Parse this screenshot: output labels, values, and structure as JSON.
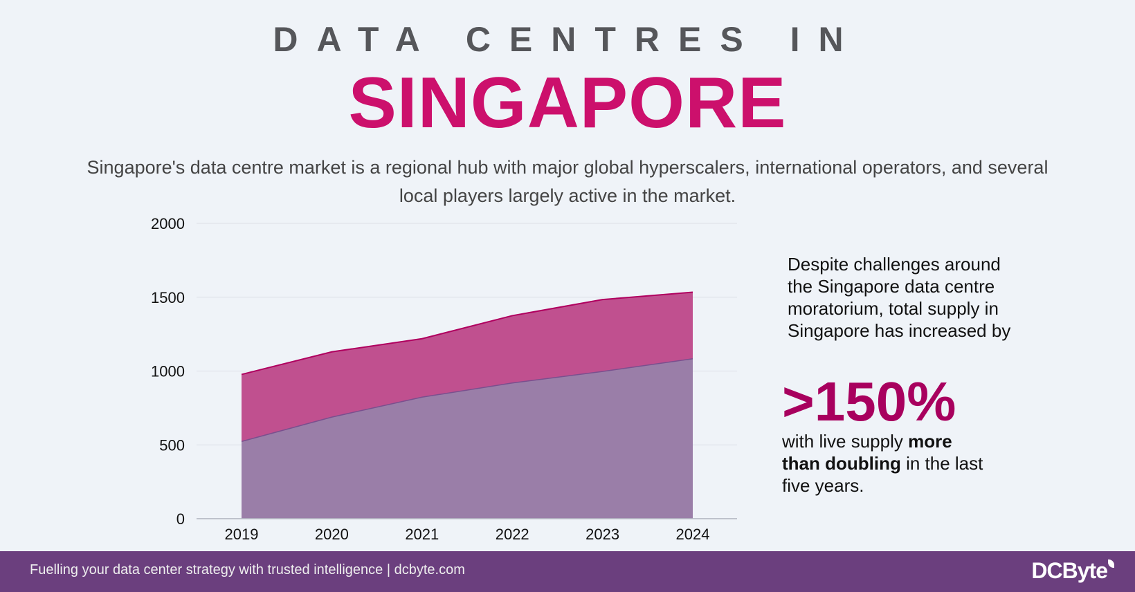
{
  "header": {
    "line1": "DATA CENTRES IN",
    "line2": "SINGAPORE",
    "subtitle": "Singapore's data centre market is a regional hub with major global hyperscalers, international operators, and several local players largely active in the market."
  },
  "side": {
    "intro": "Despite challenges around the Singapore data centre moratorium, total supply in Singapore has increased by",
    "highlight": ">150%",
    "outro_pre": "with live supply ",
    "outro_bold": "more than doubling",
    "outro_post": " in the last five years."
  },
  "footer": {
    "tagline": "Fuelling your data center strategy with trusted intelligence | dcbyte.com",
    "logo": "DCByte"
  },
  "colors": {
    "accent": "#cc106c",
    "upper_area": "#c0508f",
    "lower_area": "#9a7ea8",
    "footer": "#6b3f7e"
  },
  "chart_data": {
    "type": "area",
    "categories": [
      "2019",
      "2020",
      "2021",
      "2022",
      "2023",
      "2024"
    ],
    "series": [
      {
        "values": [
          523,
          688,
          823,
          919,
          997,
          1083
        ],
        "color": "#9a7ea8"
      },
      {
        "values": [
          977,
          1130,
          1219,
          1375,
          1484,
          1534
        ],
        "color": "#c0508f"
      }
    ],
    "yticks": [
      "0",
      "500",
      "1000",
      "1500",
      "2000"
    ],
    "ylim": [
      0,
      2000
    ],
    "grid": true,
    "title": "",
    "xlabel": "",
    "ylabel": ""
  }
}
